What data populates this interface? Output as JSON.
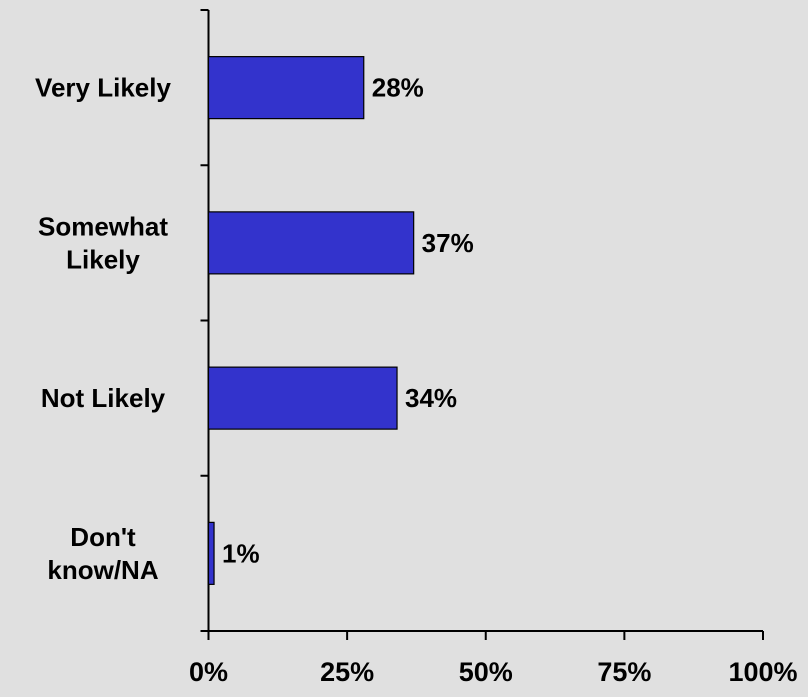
{
  "colors": {
    "background": "#e0e0e0",
    "bar_fill": "#3333cc",
    "bar_stroke": "#000000",
    "text": "#000000"
  },
  "chart_data": {
    "type": "bar",
    "orientation": "horizontal",
    "categories": [
      [
        "Very Likely"
      ],
      [
        "Somewhat",
        "Likely"
      ],
      [
        "Not Likely"
      ],
      [
        "Don't",
        "know/NA"
      ]
    ],
    "values": [
      28,
      37,
      34,
      1
    ],
    "value_labels": [
      "28%",
      "37%",
      "34%",
      "1%"
    ],
    "x_ticks": [
      0,
      25,
      50,
      75,
      100
    ],
    "x_tick_labels": [
      "0%",
      "25%",
      "50%",
      "75%",
      "100%"
    ],
    "xlim": [
      0,
      100
    ],
    "title": "",
    "xlabel": "",
    "ylabel": "",
    "grid": false,
    "legend": "none"
  }
}
